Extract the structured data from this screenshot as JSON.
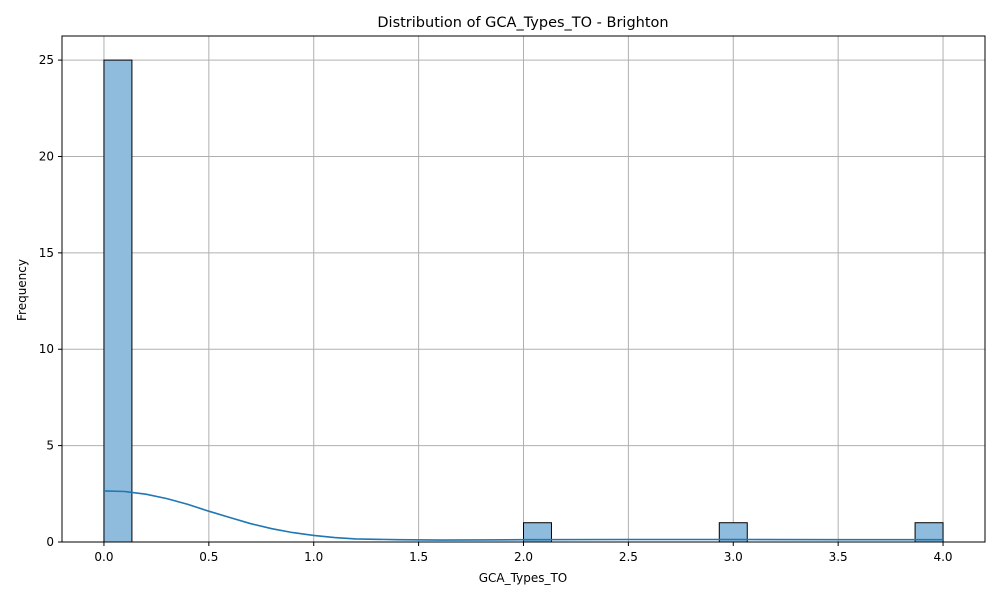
{
  "chart_data": {
    "type": "bar",
    "title": "Distribution of GCA_Types_TO - Brighton",
    "xlabel": "GCA_Types_TO",
    "ylabel": "Frequency",
    "xlim": [
      -0.2,
      4.2
    ],
    "ylim": [
      0,
      26.25
    ],
    "xticks": [
      "0.0",
      "0.5",
      "1.0",
      "1.5",
      "2.0",
      "2.5",
      "3.0",
      "3.5",
      "4.0"
    ],
    "yticks": [
      "0",
      "5",
      "10",
      "15",
      "20",
      "25"
    ],
    "grid": true,
    "bars": [
      {
        "x0": 0.0,
        "x1": 0.1333,
        "count": 25
      },
      {
        "x0": 2.0,
        "x1": 2.1333,
        "count": 1
      },
      {
        "x0": 2.9333,
        "x1": 3.0667,
        "count": 1
      },
      {
        "x0": 3.8667,
        "x1": 4.0,
        "count": 1
      }
    ],
    "kde": {
      "x": [
        0.0,
        0.1,
        0.2,
        0.3,
        0.4,
        0.5,
        0.6,
        0.7,
        0.8,
        0.9,
        1.0,
        1.1,
        1.2,
        1.4,
        1.6,
        1.8,
        2.0,
        2.5,
        3.0,
        3.5,
        4.0
      ],
      "y": [
        2.65,
        2.62,
        2.48,
        2.25,
        1.95,
        1.6,
        1.27,
        0.95,
        0.69,
        0.49,
        0.34,
        0.23,
        0.16,
        0.12,
        0.1,
        0.11,
        0.12,
        0.13,
        0.13,
        0.12,
        0.12
      ]
    },
    "colors": {
      "bar_fill": "#8fbcdc",
      "bar_edge": "#000000",
      "kde_line": "#1f77b4",
      "grid": "#b0b0b0"
    }
  }
}
